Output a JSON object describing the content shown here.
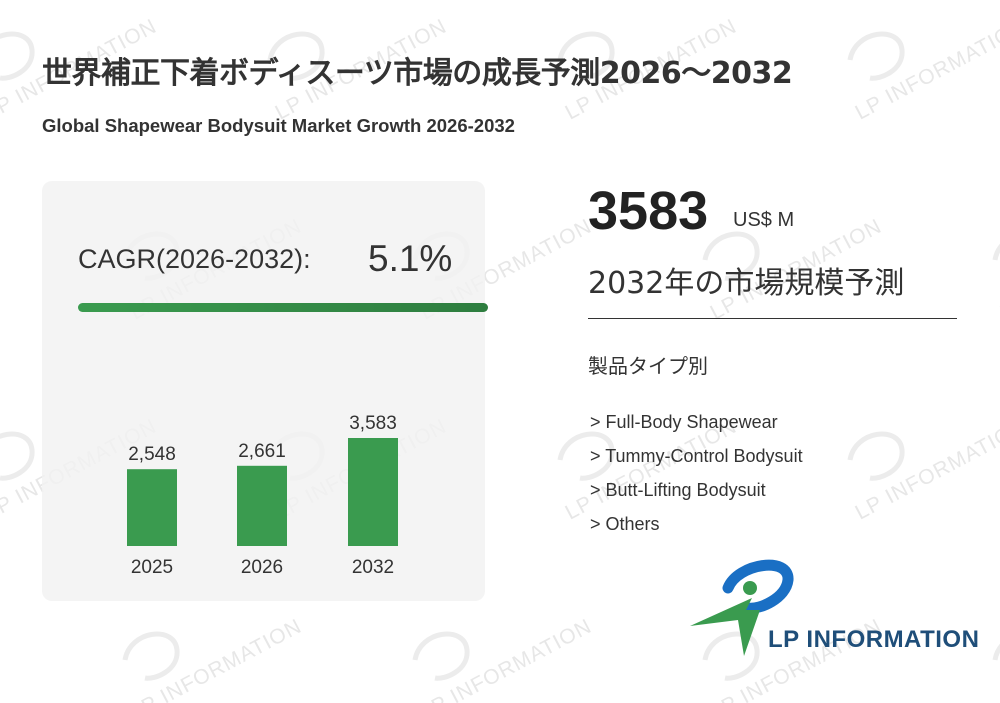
{
  "header": {
    "title_jp": "世界補正下着ボディスーツ市場の成長予測2026～2032",
    "title_en": "Global Shapewear Bodysuit Market Growth 2026-2032"
  },
  "cagr": {
    "label": "CAGR(2026-2032):",
    "value": "5.1%"
  },
  "forecast": {
    "value": "3583",
    "unit": "US$ M",
    "label": "2032年の市場規模予測"
  },
  "segments": {
    "heading": "製品タイプ別",
    "items": [
      "> Full-Body Shapewear",
      "> Tummy-Control Bodysuit",
      "> Butt-Lifting Bodysuit",
      "> Others"
    ]
  },
  "logo": {
    "text": "LP INFORMATION",
    "watermark": "LP INFORMATION"
  },
  "colors": {
    "accent_green": "#3a9b4f",
    "accent_green_dark": "#2e7d3f",
    "logo_blue": "#1a6fc4",
    "logo_navy": "#1f4e79",
    "card_bg": "#f1f1f1"
  },
  "chart_data": {
    "type": "bar",
    "categories": [
      "2025",
      "2026",
      "2032"
    ],
    "values": [
      2548,
      2661,
      3583
    ],
    "value_labels": [
      "2,548",
      "2,661",
      "3,583"
    ],
    "unit": "US$ M",
    "title": "",
    "xlabel": "",
    "ylabel": "",
    "ylim": [
      0,
      3583
    ],
    "grid": false,
    "legend": "none"
  }
}
